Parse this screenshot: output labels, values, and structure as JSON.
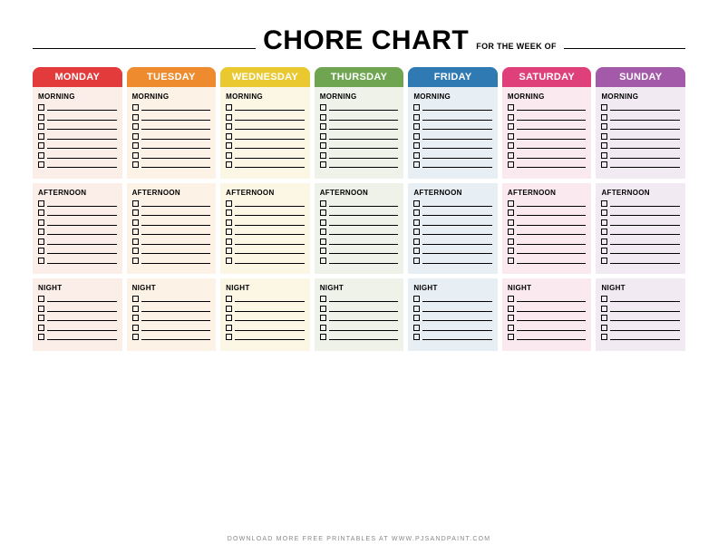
{
  "title": "CHORE CHART",
  "subtitle": "FOR THE WEEK OF",
  "footer": "DOWNLOAD MORE FREE PRINTABLES AT WWW.PJSANDPAINT.COM",
  "sections": [
    "MORNING",
    "AFTERNOON",
    "NIGHT"
  ],
  "section_rows": [
    7,
    7,
    5
  ],
  "days": [
    {
      "label": "MONDAY",
      "header_color": "#e33b3b",
      "bg_color": "#fbeee9"
    },
    {
      "label": "TUESDAY",
      "header_color": "#ed8b2e",
      "bg_color": "#fcf2e6"
    },
    {
      "label": "WEDNESDAY",
      "header_color": "#e9c92f",
      "bg_color": "#fbf7e4"
    },
    {
      "label": "THURSDAY",
      "header_color": "#6fa551",
      "bg_color": "#eef2e8"
    },
    {
      "label": "FRIDAY",
      "header_color": "#2f7ab3",
      "bg_color": "#e8eff4"
    },
    {
      "label": "SATURDAY",
      "header_color": "#e0407a",
      "bg_color": "#fae9ef"
    },
    {
      "label": "SUNDAY",
      "header_color": "#a35aa8",
      "bg_color": "#f2eaf3"
    }
  ]
}
